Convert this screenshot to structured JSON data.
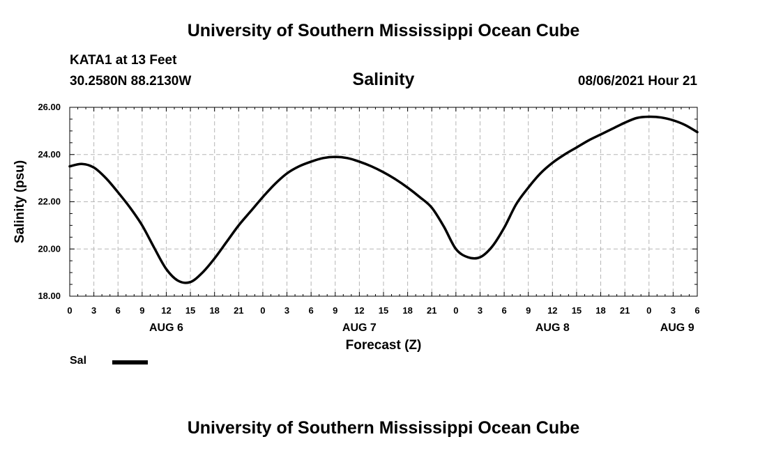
{
  "header": {
    "top_title": "University of Southern Mississippi Ocean Cube",
    "station": "KATA1 at 13 Feet",
    "coords": "30.2580N  88.2130W",
    "datetime": "08/06/2021 Hour 21",
    "bottom_title": "University of Southern Mississippi Ocean Cube"
  },
  "legend": {
    "label": "Sal",
    "color": "#000000"
  },
  "chart_data": {
    "type": "line",
    "title": "Salinity",
    "xlabel": "Forecast (Z)",
    "ylabel": "Salinity (psu)",
    "ylim": [
      18,
      26
    ],
    "yticks": [
      18,
      20,
      22,
      24,
      26
    ],
    "ytick_labels": [
      "18.00",
      "20.00",
      "22.00",
      "24.00",
      "26.00"
    ],
    "xlim": [
      0,
      78
    ],
    "xticks_hours": [
      0,
      3,
      6,
      9,
      12,
      15,
      18,
      21,
      24,
      27,
      30,
      33,
      36,
      39,
      42,
      45,
      48,
      51,
      54,
      57,
      60,
      63,
      66,
      69,
      72,
      75,
      78
    ],
    "xtick_labels": [
      "0",
      "3",
      "6",
      "9",
      "12",
      "15",
      "18",
      "21",
      "0",
      "3",
      "6",
      "9",
      "12",
      "15",
      "18",
      "21",
      "0",
      "3",
      "6",
      "9",
      "12",
      "15",
      "18",
      "21",
      "0",
      "3",
      "6"
    ],
    "day_labels": [
      {
        "label": "AUG 6",
        "hour": 12
      },
      {
        "label": "AUG 7",
        "hour": 36
      },
      {
        "label": "AUG 8",
        "hour": 60
      },
      {
        "label": "AUG 9",
        "hour": 75.5
      }
    ],
    "grid": true,
    "series": [
      {
        "name": "Sal",
        "color": "#000000",
        "x": [
          0,
          1.5,
          3,
          4.5,
          6,
          7.5,
          9,
          10.5,
          12,
          13.5,
          15,
          16.5,
          18,
          19.5,
          21,
          22.5,
          24,
          25.5,
          27,
          28.5,
          30,
          31.5,
          33,
          34.5,
          36,
          37.5,
          39,
          40.5,
          42,
          43.5,
          45,
          46.5,
          48,
          49.5,
          51,
          52.5,
          54,
          55.5,
          57,
          58.5,
          60,
          61.5,
          63,
          64.5,
          66,
          67.5,
          69,
          70.5,
          72,
          73.5,
          75,
          76.5,
          78
        ],
        "values": [
          23.5,
          23.6,
          23.45,
          23.0,
          22.4,
          21.75,
          21.0,
          20.05,
          19.15,
          18.65,
          18.6,
          19.0,
          19.6,
          20.3,
          21.0,
          21.6,
          22.2,
          22.75,
          23.2,
          23.5,
          23.7,
          23.85,
          23.9,
          23.85,
          23.7,
          23.5,
          23.25,
          22.95,
          22.6,
          22.2,
          21.75,
          20.95,
          20.0,
          19.65,
          19.65,
          20.1,
          20.9,
          21.9,
          22.6,
          23.2,
          23.65,
          24.0,
          24.3,
          24.6,
          24.85,
          25.1,
          25.35,
          25.55,
          25.6,
          25.57,
          25.45,
          25.25,
          24.95
        ]
      }
    ]
  }
}
